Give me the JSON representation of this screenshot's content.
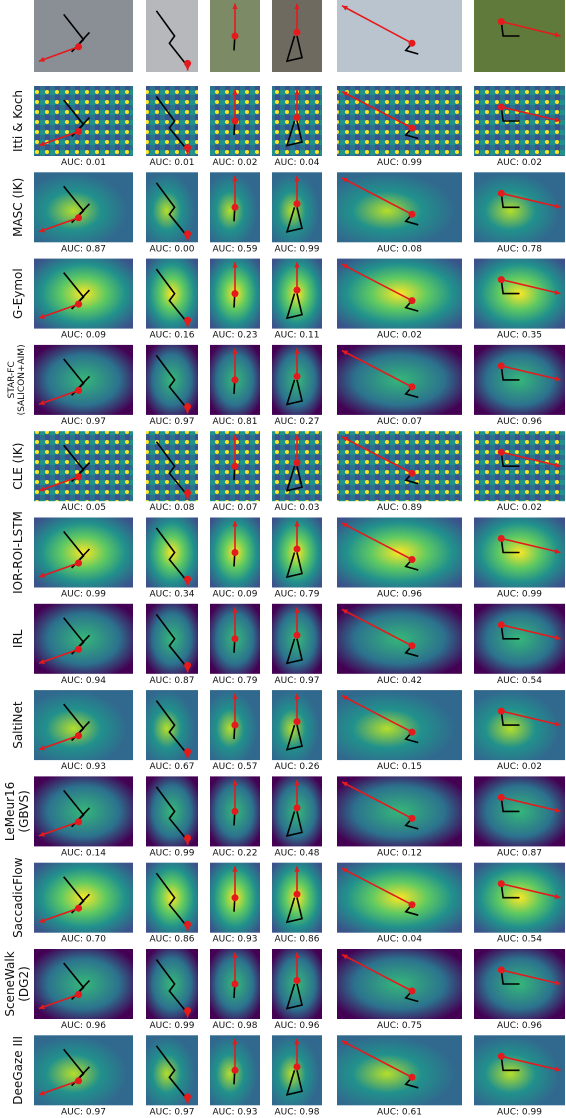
{
  "rows": [
    {
      "label": [
        "Itti & Koch"
      ],
      "auc": [
        "AUC: 0.01",
        "AUC: 0.01",
        "AUC: 0.02",
        "AUC: 0.04",
        "AUC: 0.99",
        "AUC: 0.02"
      ]
    },
    {
      "label": [
        "MASC (IK)"
      ],
      "auc": [
        "AUC: 0.87",
        "AUC: 0.00",
        "AUC: 0.59",
        "AUC: 0.99",
        "AUC: 0.08",
        "AUC: 0.78"
      ]
    },
    {
      "label": [
        "G-Eymol"
      ],
      "auc": [
        "AUC: 0.09",
        "AUC: 0.16",
        "AUC: 0.23",
        "AUC: 0.11",
        "AUC: 0.02",
        "AUC: 0.35"
      ]
    },
    {
      "label": [
        "STAR-FC",
        "(SALICON+AIM)"
      ],
      "auc": [
        "AUC: 0.97",
        "AUC: 0.97",
        "AUC: 0.81",
        "AUC: 0.27",
        "AUC: 0.07",
        "AUC: 0.96"
      ]
    },
    {
      "label": [
        "CLE (IK)"
      ],
      "auc": [
        "AUC: 0.05",
        "AUC: 0.08",
        "AUC: 0.07",
        "AUC: 0.03",
        "AUC: 0.89",
        "AUC: 0.02"
      ]
    },
    {
      "label": [
        "IOR-ROI-LSTM"
      ],
      "auc": [
        "AUC: 0.99",
        "AUC: 0.34",
        "AUC: 0.09",
        "AUC: 0.79",
        "AUC: 0.96",
        "AUC: 0.99"
      ]
    },
    {
      "label": [
        "IRL"
      ],
      "auc": [
        "AUC: 0.94",
        "AUC: 0.87",
        "AUC: 0.79",
        "AUC: 0.97",
        "AUC: 0.42",
        "AUC: 0.54"
      ]
    },
    {
      "label": [
        "SaltiNet"
      ],
      "auc": [
        "AUC: 0.93",
        "AUC: 0.67",
        "AUC: 0.57",
        "AUC: 0.26",
        "AUC: 0.15",
        "AUC: 0.02"
      ]
    },
    {
      "label": [
        "LeMeur16",
        "(GBVS)"
      ],
      "auc": [
        "AUC: 0.14",
        "AUC: 0.99",
        "AUC: 0.22",
        "AUC: 0.48",
        "AUC: 0.12",
        "AUC: 0.87"
      ]
    },
    {
      "label": [
        "SaccadicFlow"
      ],
      "auc": [
        "AUC: 0.70",
        "AUC: 0.86",
        "AUC: 0.93",
        "AUC: 0.86",
        "AUC: 0.04",
        "AUC: 0.54"
      ]
    },
    {
      "label": [
        "SceneWalk",
        "(DG2)"
      ],
      "auc": [
        "AUC: 0.96",
        "AUC: 0.99",
        "AUC: 0.98",
        "AUC: 0.96",
        "AUC: 0.75",
        "AUC: 0.96"
      ]
    },
    {
      "label": [
        "DeeGaze III"
      ],
      "auc": [
        "AUC: 0.97",
        "AUC: 0.97",
        "AUC: 0.93",
        "AUC: 0.98",
        "AUC: 0.61",
        "AUC: 0.99"
      ]
    }
  ]
}
